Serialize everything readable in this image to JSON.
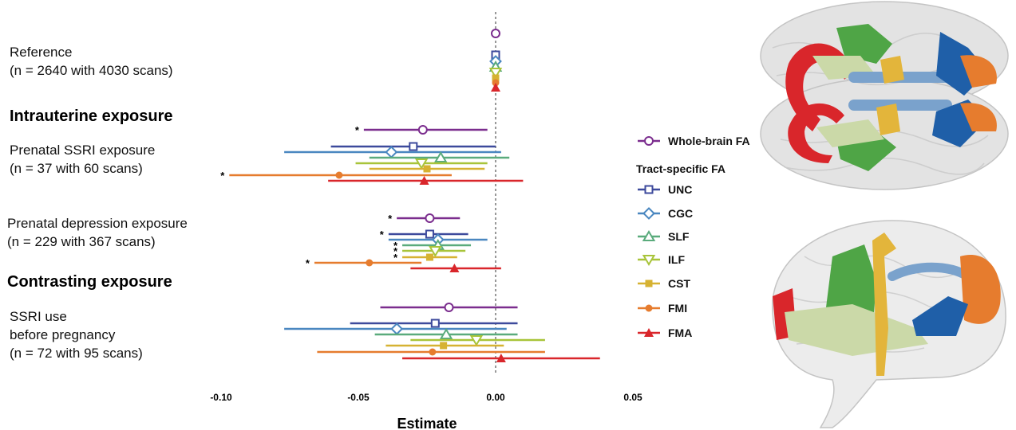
{
  "headings": {
    "intrauterine": "Intrauterine exposure",
    "contrasting": "Contrasting exposure"
  },
  "groups": [
    {
      "id": "reference",
      "lines": [
        "Reference",
        "(n = 2640 with 4030 scans)"
      ]
    },
    {
      "id": "ssri",
      "lines": [
        "Prenatal SSRI exposure",
        "(n = 37 with 60 scans)"
      ]
    },
    {
      "id": "depression",
      "lines": [
        "Prenatal depression exposure",
        "(n = 229 with 367 scans)"
      ]
    },
    {
      "id": "before",
      "lines": [
        "SSRI use",
        "before pregnancy",
        "(n = 72 with 95 scans)"
      ]
    }
  ],
  "legend": {
    "whole_brain": "Whole-brain FA",
    "tract_title": "Tract-specific FA"
  },
  "chart_data": {
    "type": "forest",
    "xlabel": "Estimate",
    "xlim": [
      -0.1,
      0.05
    ],
    "xticks": [
      -0.1,
      -0.05,
      0.0,
      0.05
    ],
    "xtick_labels": [
      "-0.10",
      "-0.05",
      "0.00",
      "0.05"
    ],
    "reference_line": 0,
    "series": [
      {
        "name": "Whole-brain FA",
        "color": "#7b2d8e",
        "marker": "circle-open"
      },
      {
        "name": "UNC",
        "color": "#3d4a9c",
        "marker": "square-open"
      },
      {
        "name": "CGC",
        "color": "#4a87c0",
        "marker": "diamond-open"
      },
      {
        "name": "SLF",
        "color": "#5aab7c",
        "marker": "triangle-up-open"
      },
      {
        "name": "ILF",
        "color": "#a8c43a",
        "marker": "triangle-down-open"
      },
      {
        "name": "CST",
        "color": "#d6b232",
        "marker": "square-filled"
      },
      {
        "name": "FMI",
        "color": "#e67c2e",
        "marker": "circle-filled"
      },
      {
        "name": "FMA",
        "color": "#d9262b",
        "marker": "triangle-up-filled"
      }
    ],
    "groups": [
      {
        "name": "Reference",
        "estimates": [
          {
            "series": "Whole-brain FA",
            "est": 0.0
          },
          {
            "series": "UNC",
            "est": 0.0
          },
          {
            "series": "CGC",
            "est": 0.0
          },
          {
            "series": "SLF",
            "est": 0.0
          },
          {
            "series": "ILF",
            "est": 0.0
          },
          {
            "series": "CST",
            "est": 0.0
          },
          {
            "series": "FMI",
            "est": 0.0
          },
          {
            "series": "FMA",
            "est": 0.0
          }
        ]
      },
      {
        "name": "Prenatal SSRI exposure",
        "estimates": [
          {
            "series": "Whole-brain FA",
            "est": -0.0265,
            "lo": -0.048,
            "hi": -0.003,
            "sig": "*"
          },
          {
            "series": "UNC",
            "est": -0.03,
            "lo": -0.06,
            "hi": 0.0
          },
          {
            "series": "CGC",
            "est": -0.038,
            "lo": -0.077,
            "hi": 0.002
          },
          {
            "series": "SLF",
            "est": -0.02,
            "lo": -0.046,
            "hi": 0.005
          },
          {
            "series": "ILF",
            "est": -0.027,
            "lo": -0.051,
            "hi": -0.003
          },
          {
            "series": "CST",
            "est": -0.025,
            "lo": -0.046,
            "hi": -0.004
          },
          {
            "series": "FMI",
            "est": -0.057,
            "lo": -0.097,
            "hi": -0.016,
            "sig": "*"
          },
          {
            "series": "FMA",
            "est": -0.026,
            "lo": -0.061,
            "hi": 0.01
          }
        ]
      },
      {
        "name": "Prenatal depression exposure",
        "estimates": [
          {
            "series": "Whole-brain FA",
            "est": -0.024,
            "lo": -0.036,
            "hi": -0.013,
            "sig": "*"
          },
          {
            "series": "UNC",
            "est": -0.024,
            "lo": -0.039,
            "hi": -0.01,
            "sig": "*"
          },
          {
            "series": "CGC",
            "est": -0.021,
            "lo": -0.039,
            "hi": -0.003
          },
          {
            "series": "SLF",
            "est": -0.021,
            "lo": -0.034,
            "hi": -0.009,
            "sig": "*"
          },
          {
            "series": "ILF",
            "est": -0.022,
            "lo": -0.034,
            "hi": -0.011,
            "sig": "*"
          },
          {
            "series": "CST",
            "est": -0.024,
            "lo": -0.034,
            "hi": -0.014,
            "sig": "*"
          },
          {
            "series": "FMI",
            "est": -0.046,
            "lo": -0.066,
            "hi": -0.027,
            "sig": "*"
          },
          {
            "series": "FMA",
            "est": -0.015,
            "lo": -0.031,
            "hi": 0.002
          }
        ]
      },
      {
        "name": "SSRI use before pregnancy",
        "estimates": [
          {
            "series": "Whole-brain FA",
            "est": -0.017,
            "lo": -0.042,
            "hi": 0.008
          },
          {
            "series": "UNC",
            "est": -0.022,
            "lo": -0.053,
            "hi": 0.008
          },
          {
            "series": "CGC",
            "est": -0.036,
            "lo": -0.077,
            "hi": 0.004
          },
          {
            "series": "SLF",
            "est": -0.018,
            "lo": -0.044,
            "hi": 0.008
          },
          {
            "series": "ILF",
            "est": -0.007,
            "lo": -0.031,
            "hi": 0.018
          },
          {
            "series": "CST",
            "est": -0.019,
            "lo": -0.04,
            "hi": 0.003
          },
          {
            "series": "FMI",
            "est": -0.023,
            "lo": -0.065,
            "hi": 0.018
          },
          {
            "series": "FMA",
            "est": 0.002,
            "lo": -0.034,
            "hi": 0.038
          }
        ]
      }
    ]
  },
  "brain_images": {
    "top_view": "brain-top-view-illustration",
    "side_view": "brain-side-view-illustration"
  }
}
